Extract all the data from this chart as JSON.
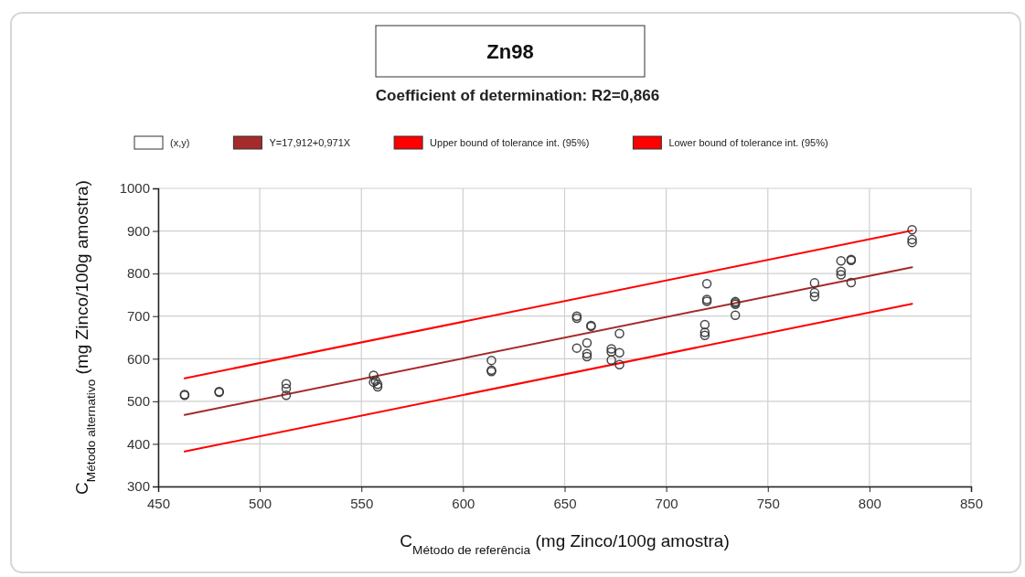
{
  "chart_data": {
    "type": "scatter",
    "title": "Zn98",
    "subtitle": "Coefficient of determination: R2=0,866",
    "xlabel": "C$_{Método de referência}$ (mg Zinco/100g amostra)",
    "ylabel": "C$_{Método alternativo}$ (mg Zinco/100g amostra)",
    "xlim": [
      450,
      850
    ],
    "xticks": [
      450,
      500,
      550,
      600,
      650,
      700,
      750,
      800,
      850
    ],
    "ylim": [
      300,
      1000
    ],
    "yticks": [
      300,
      400,
      500,
      600,
      700,
      800,
      900,
      1000
    ],
    "grid": true,
    "legend": "top",
    "series": [
      {
        "name": "(x,y)",
        "marker": "circle",
        "color": "#333333",
        "x": [
          463,
          463,
          480,
          480,
          513,
          513,
          513,
          556,
          556,
          557,
          558,
          558,
          614,
          614,
          614,
          656,
          656,
          656,
          661,
          661,
          661,
          663,
          663,
          673,
          673,
          673,
          677,
          677,
          677,
          719,
          719,
          719,
          720,
          720,
          720,
          734,
          734,
          734,
          734,
          773,
          773,
          773,
          786,
          786,
          786,
          791,
          791,
          791,
          821,
          821,
          821
        ],
        "values": [
          516,
          514,
          523,
          521,
          541,
          530,
          514,
          561,
          545,
          548,
          540,
          534,
          596,
          573,
          570,
          700,
          695,
          625,
          637,
          612,
          605,
          678,
          676,
          623,
          616,
          597,
          659,
          614,
          586,
          680,
          662,
          655,
          776,
          739,
          735,
          734,
          731,
          728,
          702,
          778,
          755,
          746,
          830,
          805,
          797,
          833,
          831,
          779,
          903,
          880,
          873
        ]
      },
      {
        "name": "Y=17,912+0,971X",
        "type": "line",
        "color": "#a52a2a",
        "x": [
          463,
          821
        ],
        "values": [
          468,
          815
        ]
      },
      {
        "name": "Upper bound of tolerance int. (95%)",
        "type": "line",
        "color": "#ff0000",
        "x": [
          463,
          821
        ],
        "values": [
          554,
          901
        ]
      },
      {
        "name": "Lower bound of tolerance int. (95%)",
        "type": "line",
        "color": "#ff0000",
        "x": [
          463,
          821
        ],
        "values": [
          382,
          729
        ]
      }
    ]
  }
}
